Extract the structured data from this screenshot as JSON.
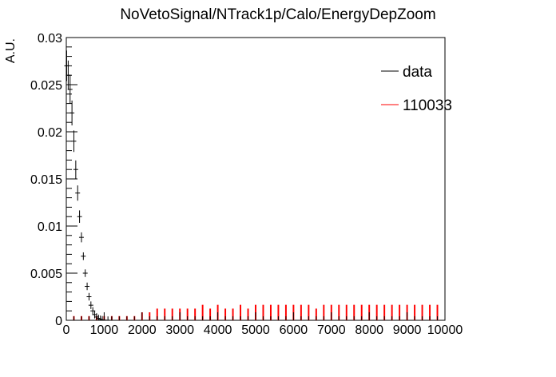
{
  "chart_data": {
    "type": "histogram",
    "title": "NoVetoSignal/NTrack1p/Calo/EnergyDepZoom",
    "xlabel": "",
    "ylabel": "A.U.",
    "xlim": [
      0,
      10000
    ],
    "ylim": [
      0,
      0.03
    ],
    "xticks": [
      0,
      1000,
      2000,
      3000,
      4000,
      5000,
      6000,
      7000,
      8000,
      9000,
      10000
    ],
    "xtick_labels": [
      "0",
      "1000",
      "2000",
      "3000",
      "4000",
      "5000",
      "6000",
      "7000",
      "8000",
      "9000",
      "10000"
    ],
    "yticks": [
      0,
      0.005,
      0.01,
      0.015,
      0.02,
      0.025,
      0.03
    ],
    "ytick_labels": [
      "0",
      "0.005",
      "0.01",
      "0.015",
      "0.02",
      "0.025",
      "0.03"
    ],
    "grid": false,
    "legend_position": "top-right",
    "bin_width": 20,
    "series": [
      {
        "name": "data",
        "color": "#000000",
        "style": "points-with-error-bars",
        "x": [
          10,
          50,
          100,
          150,
          200,
          250,
          300,
          350,
          400,
          450,
          500,
          550,
          600,
          650,
          700,
          750,
          800,
          850,
          900,
          950,
          1000,
          1100,
          1200
        ],
        "values": [
          0.027,
          0.026,
          0.0245,
          0.022,
          0.019,
          0.016,
          0.0135,
          0.011,
          0.0088,
          0.0068,
          0.005,
          0.0036,
          0.0025,
          0.0016,
          0.001,
          0.0006,
          0.00035,
          0.0002,
          0.0001,
          5e-05,
          2e-05,
          1e-05,
          0
        ]
      },
      {
        "name": "110033",
        "color": "#ff0000",
        "style": "histogram",
        "x": [
          200,
          400,
          600,
          800,
          1000,
          1200,
          1400,
          1600,
          1800,
          2000,
          2200,
          2400,
          2600,
          2800,
          3000,
          3200,
          3400,
          3600,
          3800,
          4000,
          4200,
          4400,
          4600,
          4800,
          5000,
          5200,
          5400,
          5600,
          5800,
          6000,
          6200,
          6400,
          6600,
          6800,
          7000,
          7200,
          7400,
          7600,
          7800,
          8000,
          8200,
          8400,
          8600,
          8800,
          9000,
          9200,
          9400,
          9600,
          9800
        ],
        "values": [
          0.0004,
          0.0004,
          0.0004,
          0.0004,
          0.0004,
          0.0004,
          0.0004,
          0.0004,
          0.0004,
          0.0008,
          0.0008,
          0.0012,
          0.0012,
          0.0012,
          0.0012,
          0.0012,
          0.0012,
          0.0016,
          0.0012,
          0.0016,
          0.0012,
          0.0012,
          0.0016,
          0.0012,
          0.0016,
          0.0016,
          0.0016,
          0.0016,
          0.0016,
          0.0016,
          0.0016,
          0.0016,
          0.0012,
          0.0016,
          0.0016,
          0.0016,
          0.0016,
          0.0016,
          0.0016,
          0.0016,
          0.0016,
          0.0016,
          0.0016,
          0.0016,
          0.0016,
          0.0016,
          0.0016,
          0.0016,
          0.0016
        ]
      }
    ]
  }
}
